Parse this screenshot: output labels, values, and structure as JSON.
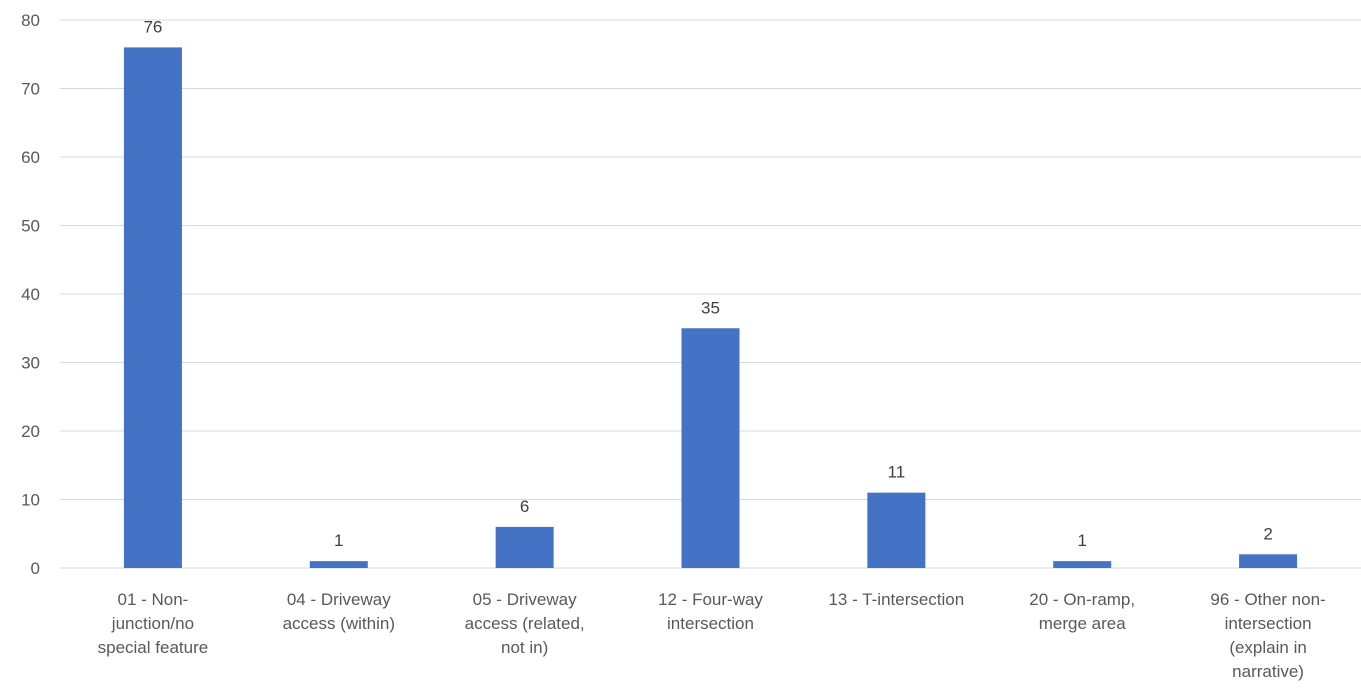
{
  "chart_data": {
    "type": "bar",
    "title": "",
    "xlabel": "",
    "ylabel": "",
    "categories": [
      [
        "01 - Non-",
        "junction/no",
        "special feature"
      ],
      [
        "04 - Driveway",
        "access (within)"
      ],
      [
        "05 - Driveway",
        "access (related,",
        "not in)"
      ],
      [
        "12 - Four-way",
        "intersection"
      ],
      [
        "13 - T-intersection"
      ],
      [
        "20 - On-ramp,",
        "merge area"
      ],
      [
        "96 - Other non-",
        "intersection",
        "(explain in",
        "narrative)"
      ]
    ],
    "values": [
      76,
      1,
      6,
      35,
      11,
      1,
      2
    ],
    "ylim": [
      0,
      80
    ],
    "yticks": [
      0,
      10,
      20,
      30,
      40,
      50,
      60,
      70,
      80
    ],
    "grid": true,
    "legend": "none",
    "data_labels": true,
    "bar_color": "#4472c4"
  }
}
